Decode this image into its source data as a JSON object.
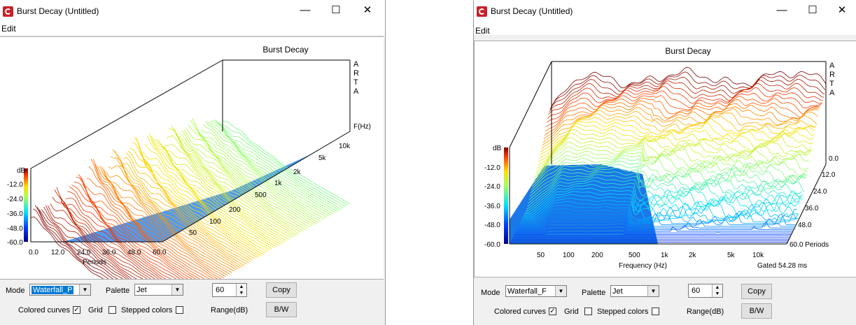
{
  "windows": {
    "left": {
      "title": "Burst Decay  (Untitled)",
      "menu": "Edit",
      "chart_title": "Burst Decay",
      "brand": [
        "A",
        "R",
        "T",
        "A"
      ],
      "freq_axis_label": "F(Hz)",
      "freq_ticks": [
        "10k",
        "5k",
        "2k",
        "1k",
        "500",
        "200",
        "100",
        "50"
      ],
      "db_label": "dB",
      "db_ticks": [
        "-12.0",
        "-24.0",
        "-36.0",
        "-48.0",
        "-60.0"
      ],
      "period_ticks": [
        "0.0",
        "12.0",
        "24.0",
        "36.0",
        "48.0",
        "60.0"
      ],
      "period_label": "Periods",
      "controls": {
        "mode_label": "Mode",
        "mode_value": "Waterfall_P",
        "palette_label": "Palette",
        "palette_value": "Jet",
        "range_value": "60",
        "range_label": "Range(dB)",
        "copy_label": "Copy",
        "bw_label": "B/W",
        "colored_curves_label": "Colored curves",
        "colored_curves_checked": true,
        "grid_label": "Grid",
        "grid_checked": false,
        "stepped_label": "Stepped colors",
        "stepped_checked": false
      }
    },
    "right": {
      "title": "Burst Decay  (Untitled)",
      "menu": "Edit",
      "chart_title": "Burst Decay",
      "brand": [
        "A",
        "R",
        "T",
        "A"
      ],
      "db_label": "dB",
      "db_ticks": [
        "-12.0",
        "-24.0",
        "-36.0",
        "-48.0",
        "-60.0"
      ],
      "freq_ticks": [
        "50",
        "100",
        "200",
        "500",
        "1k",
        "2k",
        "5k",
        "10k"
      ],
      "freq_axis_label": "Frequency (Hz)",
      "gated_label": "Gated 54.28 ms",
      "period_ticks": [
        "0.0",
        "12.0",
        "24.0",
        "36.0",
        "48.0",
        "60.0 Periods"
      ],
      "controls": {
        "mode_label": "Mode",
        "mode_value": "Waterfall_F",
        "palette_label": "Palette",
        "palette_value": "Jet",
        "range_value": "60",
        "range_label": "Range(dB)",
        "copy_label": "Copy",
        "bw_label": "B/W",
        "colored_curves_label": "Colored curves",
        "colored_curves_checked": true,
        "grid_label": "Grid",
        "grid_checked": false,
        "stepped_label": "Stepped colors",
        "stepped_checked": false
      }
    }
  },
  "colors": {
    "blue_fill": "#1a78e8",
    "frame": "#000000"
  }
}
